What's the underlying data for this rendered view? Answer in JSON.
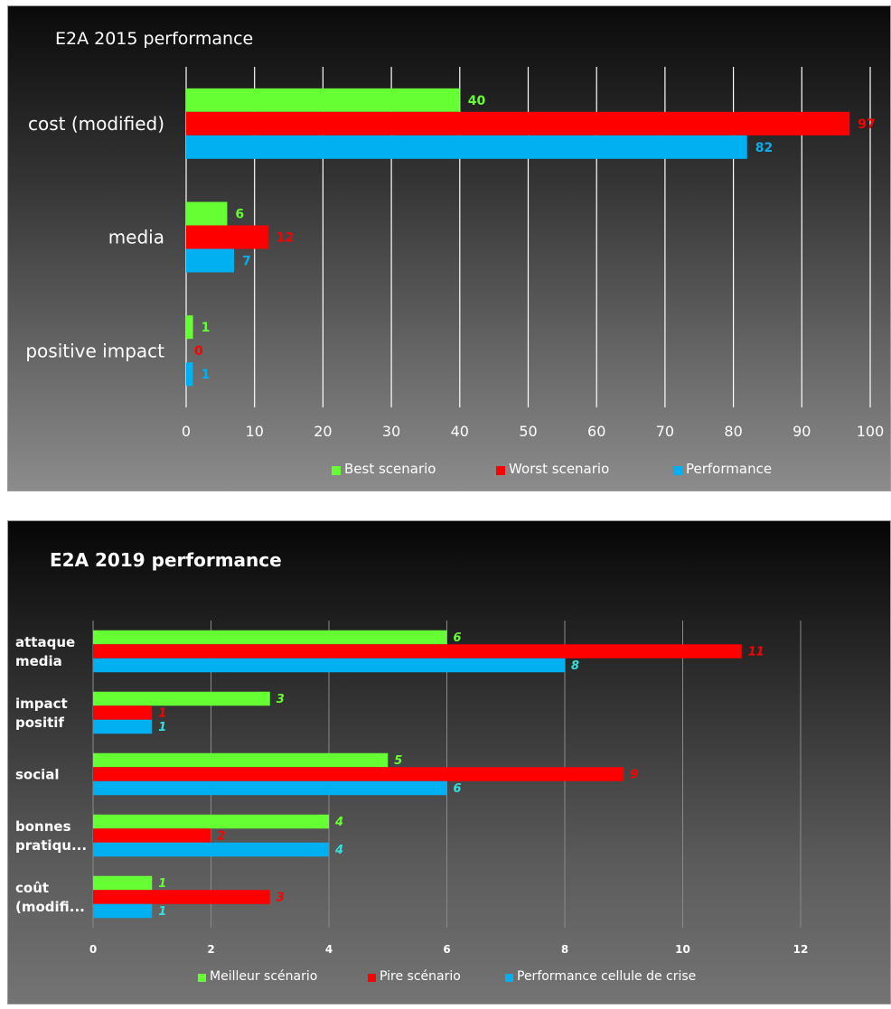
{
  "chart_data": [
    {
      "type": "bar",
      "orientation": "horizontal",
      "title": "E2A 2015 performance",
      "categories": [
        "cost (modified)",
        "media",
        "positive impact"
      ],
      "series": [
        {
          "name": "Best scenario",
          "color": "#66ff33",
          "values": [
            40,
            6,
            1
          ],
          "labels": [
            "40",
            "6",
            "1"
          ]
        },
        {
          "name": "Worst scenario",
          "color": "#ff0000",
          "values": [
            97,
            12,
            0
          ],
          "labels": [
            "97",
            "12",
            "0"
          ]
        },
        {
          "name": "Performance",
          "color": "#00b0f0",
          "values": [
            82,
            7,
            1
          ],
          "labels": [
            "82",
            "7",
            "1"
          ]
        }
      ],
      "xlim": [
        0,
        100
      ],
      "xticks": [
        "0",
        "10",
        "20",
        "30",
        "40",
        "50",
        "60",
        "70",
        "80",
        "90",
        "100"
      ],
      "grid": true,
      "legend_position": "bottom"
    },
    {
      "type": "bar",
      "orientation": "horizontal",
      "title": "E2A 2019 performance",
      "categories": [
        [
          "attaque",
          "media"
        ],
        [
          "impact",
          "positif"
        ],
        [
          "social"
        ],
        [
          "bonnes",
          "pratiqu..."
        ],
        [
          "coût",
          "(modifi..."
        ]
      ],
      "series": [
        {
          "name": "Meilleur scénario",
          "color": "#66ff33",
          "label_color": "#66ff33",
          "values": [
            6,
            3,
            5,
            4,
            1
          ],
          "labels": [
            "6",
            "3",
            "5",
            "4",
            "1"
          ]
        },
        {
          "name": "Pire scénario",
          "color": "#ff0000",
          "label_color": "#ff0000",
          "values": [
            11,
            1,
            9,
            2,
            3
          ],
          "labels": [
            "11",
            "1",
            "9",
            "2",
            "3"
          ]
        },
        {
          "name": "Performance cellule de crise",
          "color": "#00b0f0",
          "label_color": "#33e0e0",
          "values": [
            8,
            1,
            6,
            4,
            1
          ],
          "labels": [
            "8",
            "1",
            "6",
            "4",
            "1"
          ]
        }
      ],
      "xlim": [
        0,
        12
      ],
      "xticks": [
        "0",
        "2",
        "4",
        "6",
        "8",
        "10",
        "12"
      ],
      "grid": true,
      "legend_position": "bottom"
    }
  ]
}
